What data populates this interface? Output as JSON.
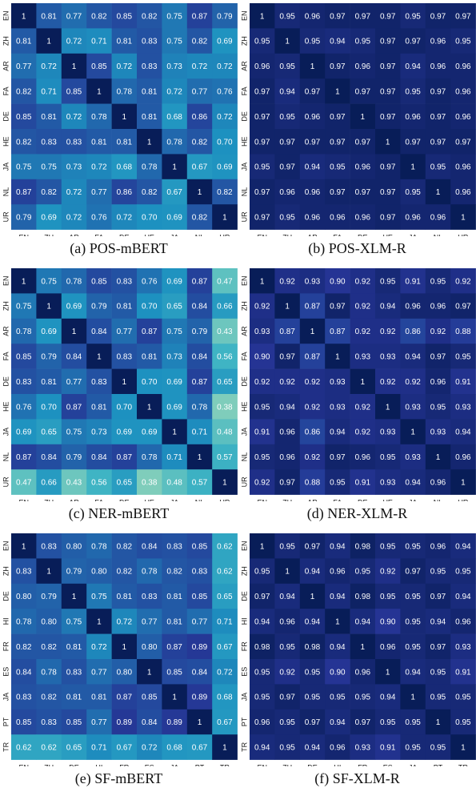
{
  "chart_data": [
    {
      "type": "heatmap",
      "title": "(a) POS-mBERT",
      "categories": [
        "EN",
        "ZH",
        "AR",
        "FA",
        "DE",
        "HE",
        "JA",
        "NL",
        "UR"
      ],
      "values": [
        [
          "1",
          "0.81",
          "0.77",
          "0.82",
          "0.85",
          "0.82",
          "0.75",
          "0.87",
          "0.79"
        ],
        [
          "0.81",
          "1",
          "0.72",
          "0.71",
          "0.81",
          "0.83",
          "0.75",
          "0.82",
          "0.69"
        ],
        [
          "0.77",
          "0.72",
          "1",
          "0.85",
          "0.72",
          "0.83",
          "0.73",
          "0.72",
          "0.72"
        ],
        [
          "0.82",
          "0.71",
          "0.85",
          "1",
          "0.78",
          "0.81",
          "0.72",
          "0.77",
          "0.76"
        ],
        [
          "0.85",
          "0.81",
          "0.72",
          "0.78",
          "1",
          "0.81",
          "0.68",
          "0.86",
          "0.72"
        ],
        [
          "0.82",
          "0.83",
          "0.83",
          "0.81",
          "0.81",
          "1",
          "0.78",
          "0.82",
          "0.70"
        ],
        [
          "0.75",
          "0.75",
          "0.73",
          "0.72",
          "0.68",
          "0.78",
          "1",
          "0.67",
          "0.69"
        ],
        [
          "0.87",
          "0.82",
          "0.72",
          "0.77",
          "0.86",
          "0.82",
          "0.67",
          "1",
          "0.82"
        ],
        [
          "0.79",
          "0.69",
          "0.72",
          "0.76",
          "0.72",
          "0.70",
          "0.69",
          "0.82",
          "1"
        ]
      ]
    },
    {
      "type": "heatmap",
      "title": "(b) POS-XLM-R",
      "categories": [
        "EN",
        "ZH",
        "AR",
        "FA",
        "DE",
        "HE",
        "JA",
        "NL",
        "UR"
      ],
      "values": [
        [
          "1",
          "0.95",
          "0.96",
          "0.97",
          "0.97",
          "0.97",
          "0.95",
          "0.97",
          "0.97"
        ],
        [
          "0.95",
          "1",
          "0.95",
          "0.94",
          "0.95",
          "0.97",
          "0.97",
          "0.96",
          "0.95"
        ],
        [
          "0.96",
          "0.95",
          "1",
          "0.97",
          "0.96",
          "0.97",
          "0.94",
          "0.96",
          "0.96"
        ],
        [
          "0.97",
          "0.94",
          "0.97",
          "1",
          "0.97",
          "0.97",
          "0.95",
          "0.97",
          "0.96"
        ],
        [
          "0.97",
          "0.95",
          "0.96",
          "0.97",
          "1",
          "0.97",
          "0.96",
          "0.97",
          "0.96"
        ],
        [
          "0.97",
          "0.97",
          "0.97",
          "0.97",
          "0.97",
          "1",
          "0.97",
          "0.97",
          "0.97"
        ],
        [
          "0.95",
          "0.97",
          "0.94",
          "0.95",
          "0.96",
          "0.97",
          "1",
          "0.95",
          "0.96"
        ],
        [
          "0.97",
          "0.96",
          "0.96",
          "0.97",
          "0.97",
          "0.97",
          "0.95",
          "1",
          "0.96"
        ],
        [
          "0.97",
          "0.95",
          "0.96",
          "0.96",
          "0.96",
          "0.97",
          "0.96",
          "0.96",
          "1"
        ]
      ]
    },
    {
      "type": "heatmap",
      "title": "(c) NER-mBERT",
      "categories": [
        "EN",
        "ZH",
        "AR",
        "FA",
        "DE",
        "HE",
        "JA",
        "NL",
        "UR"
      ],
      "values": [
        [
          "1",
          "0.75",
          "0.78",
          "0.85",
          "0.83",
          "0.76",
          "0.69",
          "0.87",
          "0.47"
        ],
        [
          "0.75",
          "1",
          "0.69",
          "0.79",
          "0.81",
          "0.70",
          "0.65",
          "0.84",
          "0.66"
        ],
        [
          "0.78",
          "0.69",
          "1",
          "0.84",
          "0.77",
          "0.87",
          "0.75",
          "0.79",
          "0.43"
        ],
        [
          "0.85",
          "0.79",
          "0.84",
          "1",
          "0.83",
          "0.81",
          "0.73",
          "0.84",
          "0.56"
        ],
        [
          "0.83",
          "0.81",
          "0.77",
          "0.83",
          "1",
          "0.70",
          "0.69",
          "0.87",
          "0.65"
        ],
        [
          "0.76",
          "0.70",
          "0.87",
          "0.81",
          "0.70",
          "1",
          "0.69",
          "0.78",
          "0.38"
        ],
        [
          "0.69",
          "0.65",
          "0.75",
          "0.73",
          "0.69",
          "0.69",
          "1",
          "0.71",
          "0.48"
        ],
        [
          "0.87",
          "0.84",
          "0.79",
          "0.84",
          "0.87",
          "0.78",
          "0.71",
          "1",
          "0.57"
        ],
        [
          "0.47",
          "0.66",
          "0.43",
          "0.56",
          "0.65",
          "0.38",
          "0.48",
          "0.57",
          "1"
        ]
      ]
    },
    {
      "type": "heatmap",
      "title": "(d) NER-XLM-R",
      "categories": [
        "EN",
        "ZH",
        "AR",
        "FA",
        "DE",
        "HE",
        "JA",
        "NL",
        "UR"
      ],
      "values": [
        [
          "1",
          "0.92",
          "0.93",
          "0.90",
          "0.92",
          "0.95",
          "0.91",
          "0.95",
          "0.92"
        ],
        [
          "0.92",
          "1",
          "0.87",
          "0.97",
          "0.92",
          "0.94",
          "0.96",
          "0.96",
          "0.97"
        ],
        [
          "0.93",
          "0.87",
          "1",
          "0.87",
          "0.92",
          "0.92",
          "0.86",
          "0.92",
          "0.88"
        ],
        [
          "0.90",
          "0.97",
          "0.87",
          "1",
          "0.93",
          "0.93",
          "0.94",
          "0.97",
          "0.95"
        ],
        [
          "0.92",
          "0.92",
          "0.92",
          "0.93",
          "1",
          "0.92",
          "0.92",
          "0.96",
          "0.91"
        ],
        [
          "0.95",
          "0.94",
          "0.92",
          "0.93",
          "0.92",
          "1",
          "0.93",
          "0.95",
          "0.93"
        ],
        [
          "0.91",
          "0.96",
          "0.86",
          "0.94",
          "0.92",
          "0.93",
          "1",
          "0.93",
          "0.94"
        ],
        [
          "0.95",
          "0.96",
          "0.92",
          "0.97",
          "0.96",
          "0.95",
          "0.93",
          "1",
          "0.96"
        ],
        [
          "0.92",
          "0.97",
          "0.88",
          "0.95",
          "0.91",
          "0.93",
          "0.94",
          "0.96",
          "1"
        ]
      ]
    },
    {
      "type": "heatmap",
      "title": "(e) SF-mBERT",
      "categories": [
        "EN",
        "ZH",
        "DE",
        "HI",
        "FR",
        "ES",
        "JA",
        "PT",
        "TR"
      ],
      "values": [
        [
          "1",
          "0.83",
          "0.80",
          "0.78",
          "0.82",
          "0.84",
          "0.83",
          "0.85",
          "0.62"
        ],
        [
          "0.83",
          "1",
          "0.79",
          "0.80",
          "0.82",
          "0.78",
          "0.82",
          "0.83",
          "0.62"
        ],
        [
          "0.80",
          "0.79",
          "1",
          "0.75",
          "0.81",
          "0.83",
          "0.81",
          "0.85",
          "0.65"
        ],
        [
          "0.78",
          "0.80",
          "0.75",
          "1",
          "0.72",
          "0.77",
          "0.81",
          "0.77",
          "0.71"
        ],
        [
          "0.82",
          "0.82",
          "0.81",
          "0.72",
          "1",
          "0.80",
          "0.87",
          "0.89",
          "0.67"
        ],
        [
          "0.84",
          "0.78",
          "0.83",
          "0.77",
          "0.80",
          "1",
          "0.85",
          "0.84",
          "0.72"
        ],
        [
          "0.83",
          "0.82",
          "0.81",
          "0.81",
          "0.87",
          "0.85",
          "1",
          "0.89",
          "0.68"
        ],
        [
          "0.85",
          "0.83",
          "0.85",
          "0.77",
          "0.89",
          "0.84",
          "0.89",
          "1",
          "0.67"
        ],
        [
          "0.62",
          "0.62",
          "0.65",
          "0.71",
          "0.67",
          "0.72",
          "0.68",
          "0.67",
          "1"
        ]
      ]
    },
    {
      "type": "heatmap",
      "title": "(f) SF-XLM-R",
      "categories": [
        "EN",
        "ZH",
        "DE",
        "HI",
        "FR",
        "ES",
        "JA",
        "PT",
        "TR"
      ],
      "values": [
        [
          "1",
          "0.95",
          "0.97",
          "0.94",
          "0.98",
          "0.95",
          "0.95",
          "0.96",
          "0.94"
        ],
        [
          "0.95",
          "1",
          "0.94",
          "0.96",
          "0.95",
          "0.92",
          "0.97",
          "0.95",
          "0.95"
        ],
        [
          "0.97",
          "0.94",
          "1",
          "0.94",
          "0.98",
          "0.95",
          "0.95",
          "0.97",
          "0.94"
        ],
        [
          "0.94",
          "0.96",
          "0.94",
          "1",
          "0.94",
          "0.90",
          "0.95",
          "0.94",
          "0.96"
        ],
        [
          "0.98",
          "0.95",
          "0.98",
          "0.94",
          "1",
          "0.96",
          "0.95",
          "0.97",
          "0.93"
        ],
        [
          "0.95",
          "0.92",
          "0.95",
          "0.90",
          "0.96",
          "1",
          "0.94",
          "0.95",
          "0.91"
        ],
        [
          "0.95",
          "0.97",
          "0.95",
          "0.95",
          "0.95",
          "0.94",
          "1",
          "0.95",
          "0.95"
        ],
        [
          "0.96",
          "0.95",
          "0.97",
          "0.94",
          "0.97",
          "0.95",
          "0.95",
          "1",
          "0.95"
        ],
        [
          "0.94",
          "0.95",
          "0.94",
          "0.96",
          "0.93",
          "0.91",
          "0.95",
          "0.95",
          "1"
        ]
      ]
    }
  ]
}
